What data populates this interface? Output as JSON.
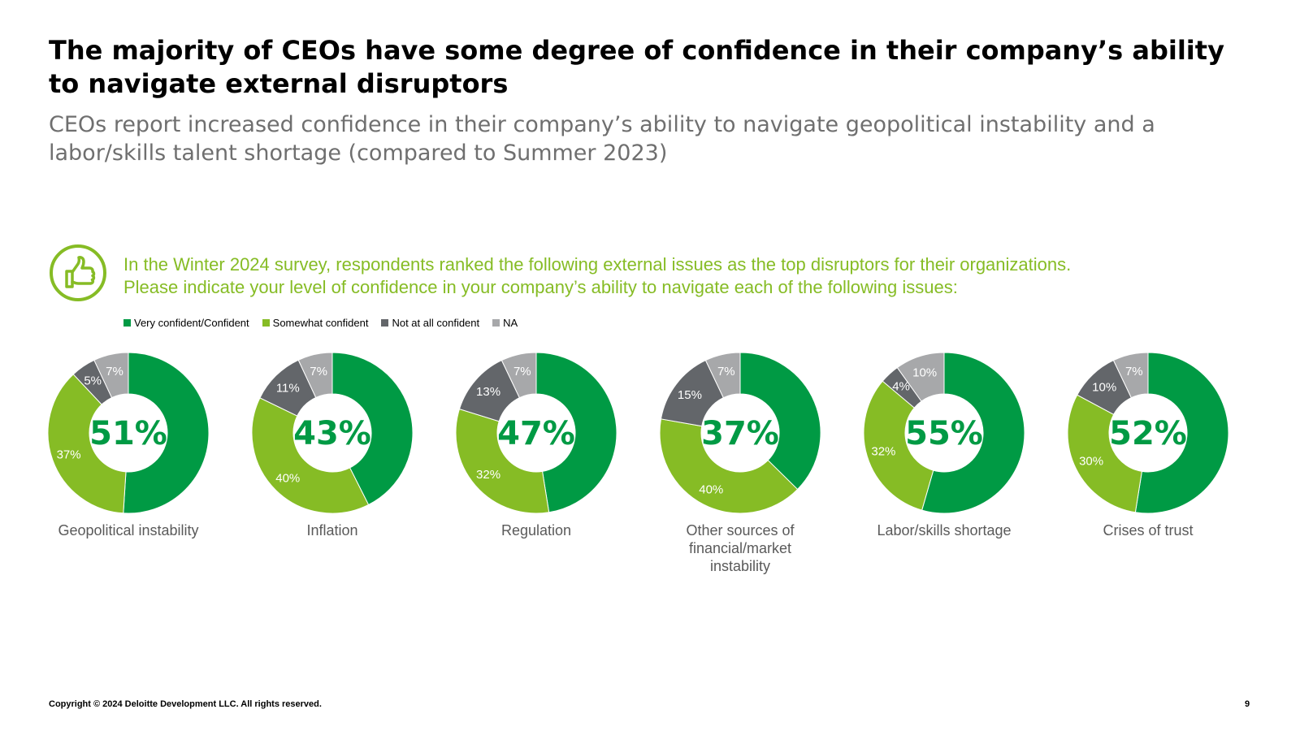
{
  "header": {
    "title": "The majority of CEOs have some degree of confidence in their company’s ability to navigate external disruptors",
    "subtitle": "CEOs report increased confidence in their company’s ability to navigate geopolitical instability and a labor/skills talent shortage (compared to Summer 2023)"
  },
  "question": {
    "line1": "In the Winter 2024 survey, respondents ranked the following external issues as the top disruptors for their organizations.",
    "line2": "Please indicate your level of confidence in your company’s ability to navigate each of the following issues:",
    "icon": "thumbs-up-icon"
  },
  "colors": {
    "very_confident": "#009a44",
    "somewhat_confident": "#86bc25",
    "not_confident": "#63666a",
    "na": "#a7a8aa",
    "accent": "#86bc25"
  },
  "chart_data": {
    "type": "pie",
    "legend_position": "top-left",
    "series_names": [
      "Very confident/Confident",
      "Somewhat confident",
      "Not at all confident",
      "NA"
    ],
    "charts": [
      {
        "category": "Geopolitical instability",
        "values": [
          51,
          37,
          5,
          7
        ],
        "labels": [
          "51%",
          "37%",
          "5%",
          "7%"
        ]
      },
      {
        "category": "Inflation",
        "values": [
          43,
          40,
          11,
          7
        ],
        "labels": [
          "43%",
          "40%",
          "11%",
          "7%"
        ]
      },
      {
        "category": "Regulation",
        "values": [
          47,
          32,
          13,
          7
        ],
        "labels": [
          "47%",
          "32%",
          "13%",
          "7%"
        ]
      },
      {
        "category": "Other sources of financial/market instability",
        "category_lines": [
          "Other sources of",
          "financial/market",
          "instability"
        ],
        "values": [
          37,
          40,
          15,
          7
        ],
        "labels": [
          "37%",
          "40%",
          "15%",
          "7%"
        ]
      },
      {
        "category": "Labor/skills shortage",
        "values": [
          55,
          32,
          4,
          10
        ],
        "labels": [
          "55%",
          "32%",
          "4%",
          "10%"
        ]
      },
      {
        "category": "Crises of trust",
        "values": [
          52,
          30,
          10,
          7
        ],
        "labels": [
          "52%",
          "30%",
          "10%",
          "7%"
        ]
      }
    ]
  },
  "footer": {
    "copyright": "Copyright © 2024 Deloitte Development LLC. All rights reserved.",
    "page_number": "9"
  }
}
